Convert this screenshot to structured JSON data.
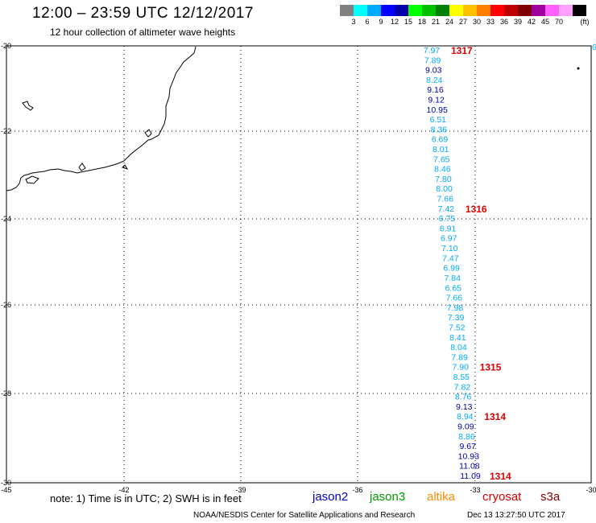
{
  "header": {
    "title": "12:00 – 23:59 UTC 12/12/2017",
    "subtitle": "12 hour collection of altimeter wave heights"
  },
  "legend": {
    "unit": "(ft)",
    "colors": [
      "#808080",
      "#00ffff",
      "#00aaff",
      "#0000ff",
      "#0000aa",
      "#00ff00",
      "#00c000",
      "#008000",
      "#ffff00",
      "#ffc000",
      "#ff8000",
      "#ff0000",
      "#c00000",
      "#800000",
      "#a000a0",
      "#ff60ff",
      "#ffa0ff",
      "#000000"
    ],
    "labels": [
      "3",
      "6",
      "9",
      "12",
      "15",
      "18",
      "21",
      "24",
      "27",
      "30",
      "33",
      "36",
      "39",
      "42",
      "45",
      "70"
    ]
  },
  "axes": {
    "lon_ticks": [
      "-45",
      "-42",
      "-39",
      "-36",
      "-33",
      "-30"
    ],
    "lat_ticks": [
      "-20",
      "-22",
      "-24",
      "-26",
      "-28",
      "-30"
    ]
  },
  "track": {
    "values": [
      {
        "v": "7.97",
        "c": "#00aaff"
      },
      {
        "v": "7.89",
        "c": "#00aaff"
      },
      {
        "v": "9.03",
        "c": "#0000aa"
      },
      {
        "v": "8.24",
        "c": "#00aaff"
      },
      {
        "v": "9.16",
        "c": "#0000aa"
      },
      {
        "v": "9.12",
        "c": "#0000aa"
      },
      {
        "v": "10.95",
        "c": "#0000aa"
      },
      {
        "v": "6.51",
        "c": "#00aaff"
      },
      {
        "v": "8.36",
        "c": "#00aaff"
      },
      {
        "v": "6.69",
        "c": "#00aaff"
      },
      {
        "v": "8.01",
        "c": "#00aaff"
      },
      {
        "v": "7.65",
        "c": "#00aaff"
      },
      {
        "v": "8.46",
        "c": "#00aaff"
      },
      {
        "v": "7.80",
        "c": "#00aaff"
      },
      {
        "v": "8.00",
        "c": "#00aaff"
      },
      {
        "v": "7.66",
        "c": "#00aaff"
      },
      {
        "v": "7.42",
        "c": "#00aaff"
      },
      {
        "v": "6.75",
        "c": "#00aaff"
      },
      {
        "v": "6.91",
        "c": "#00aaff"
      },
      {
        "v": "6.97",
        "c": "#00aaff"
      },
      {
        "v": "7.10",
        "c": "#00aaff"
      },
      {
        "v": "7.47",
        "c": "#00aaff"
      },
      {
        "v": "6.99",
        "c": "#00aaff"
      },
      {
        "v": "7.84",
        "c": "#00aaff"
      },
      {
        "v": "6.65",
        "c": "#00aaff"
      },
      {
        "v": "7.66",
        "c": "#00aaff"
      },
      {
        "v": "7.98",
        "c": "#00aaff"
      },
      {
        "v": "7.39",
        "c": "#00aaff"
      },
      {
        "v": "7.52",
        "c": "#00aaff"
      },
      {
        "v": "8.41",
        "c": "#00aaff"
      },
      {
        "v": "8.04",
        "c": "#00aaff"
      },
      {
        "v": "7.89",
        "c": "#00aaff"
      },
      {
        "v": "7.90",
        "c": "#00aaff"
      },
      {
        "v": "8.55",
        "c": "#00aaff"
      },
      {
        "v": "7.82",
        "c": "#00aaff"
      },
      {
        "v": "8.76",
        "c": "#00aaff"
      },
      {
        "v": "9.13",
        "c": "#0000aa"
      },
      {
        "v": "8.94",
        "c": "#00aaff"
      },
      {
        "v": "9.09",
        "c": "#0000aa"
      },
      {
        "v": "8.86",
        "c": "#00aaff"
      },
      {
        "v": "9.67",
        "c": "#0000aa"
      },
      {
        "v": "10.93",
        "c": "#0000aa"
      },
      {
        "v": "11.08",
        "c": "#0000aa"
      },
      {
        "v": "11.09",
        "c": "#0000aa"
      }
    ],
    "times": [
      {
        "t": "1317",
        "row": 0
      },
      {
        "t": "1316",
        "row": 16
      },
      {
        "t": "1315",
        "row": 32
      },
      {
        "t": "1314",
        "row": 37
      },
      {
        "t": "1314",
        "row": 43
      }
    ],
    "edge_label": "6"
  },
  "footer": {
    "note": "note: 1) Time is in UTC; 2) SWH is in feet",
    "satellites": [
      {
        "name": "jason2",
        "color": "#0000cc"
      },
      {
        "name": "jason3",
        "color": "#009900"
      },
      {
        "name": "altika",
        "color": "#ff8c00"
      },
      {
        "name": "cryosat",
        "color": "#dd0000"
      },
      {
        "name": "s3a",
        "color": "#8b0000"
      }
    ],
    "org": "NOAA/NESDIS Center for Satellite Applications and Research",
    "timestamp": "Dec 13 13:27:50 UTC 2017"
  }
}
